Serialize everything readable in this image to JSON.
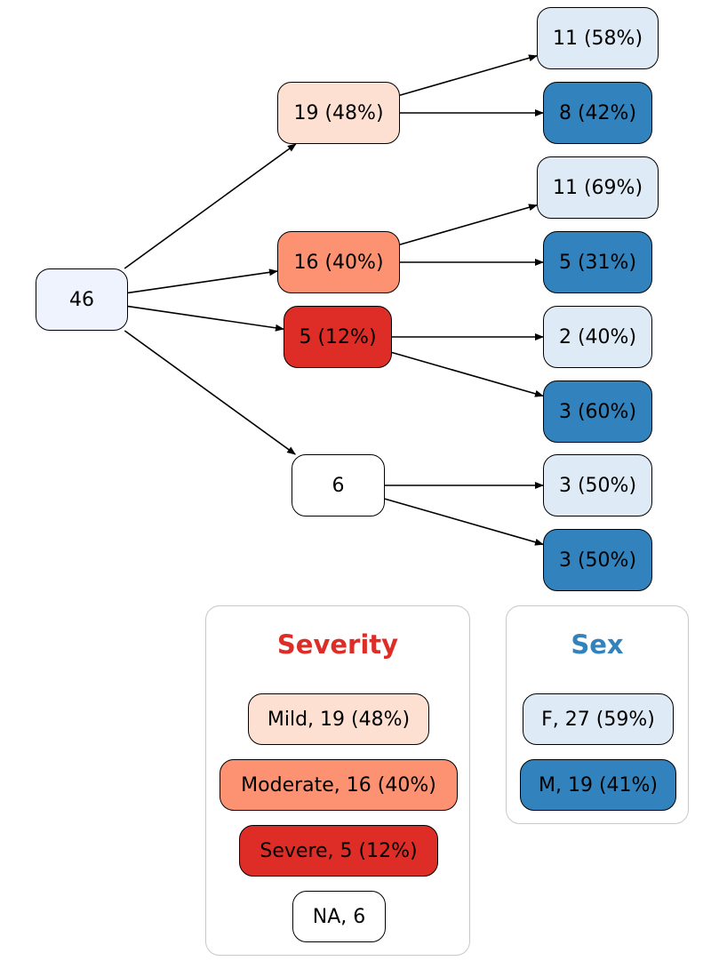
{
  "colors": {
    "root": "#eef3fe",
    "mild": "#fde0d2",
    "moderate": "#fc9272",
    "severe": "#de2d26",
    "na": "#ffffff",
    "female": "#deebf7",
    "male": "#3182bd",
    "severity_title": "#de2d26",
    "sex_title": "#3182bd"
  },
  "nodes": {
    "root": {
      "label": "46",
      "fill": "root"
    },
    "mild": {
      "label": "19 (48%)",
      "fill": "mild"
    },
    "moderate": {
      "label": "16 (40%)",
      "fill": "moderate"
    },
    "severe": {
      "label": "5 (12%)",
      "fill": "severe"
    },
    "na": {
      "label": "6",
      "fill": "na"
    },
    "mild_f": {
      "label": "11 (58%)",
      "fill": "female"
    },
    "mild_m": {
      "label": "8 (42%)",
      "fill": "male"
    },
    "moderate_f": {
      "label": "11 (69%)",
      "fill": "female"
    },
    "moderate_m": {
      "label": "5 (31%)",
      "fill": "male"
    },
    "severe_f": {
      "label": "2 (40%)",
      "fill": "female"
    },
    "severe_m": {
      "label": "3 (60%)",
      "fill": "male"
    },
    "na_f": {
      "label": "3 (50%)",
      "fill": "female"
    },
    "na_m": {
      "label": "3 (50%)",
      "fill": "male"
    }
  },
  "edges": [
    [
      "root",
      "mild"
    ],
    [
      "root",
      "moderate"
    ],
    [
      "root",
      "severe"
    ],
    [
      "root",
      "na"
    ],
    [
      "mild",
      "mild_f"
    ],
    [
      "mild",
      "mild_m"
    ],
    [
      "moderate",
      "moderate_f"
    ],
    [
      "moderate",
      "moderate_m"
    ],
    [
      "severe",
      "severe_f"
    ],
    [
      "severe",
      "severe_m"
    ],
    [
      "na",
      "na_f"
    ],
    [
      "na",
      "na_m"
    ]
  ],
  "legend": {
    "severity": {
      "title": "Severity",
      "items": [
        {
          "label": "Mild, 19 (48%)",
          "fill": "mild"
        },
        {
          "label": "Moderate, 16 (40%)",
          "fill": "moderate"
        },
        {
          "label": "Severe, 5 (12%)",
          "fill": "severe"
        },
        {
          "label": "NA, 6",
          "fill": "na"
        }
      ]
    },
    "sex": {
      "title": "Sex",
      "items": [
        {
          "label": "F, 27 (59%)",
          "fill": "female"
        },
        {
          "label": "M, 19 (41%)",
          "fill": "male"
        }
      ]
    }
  }
}
